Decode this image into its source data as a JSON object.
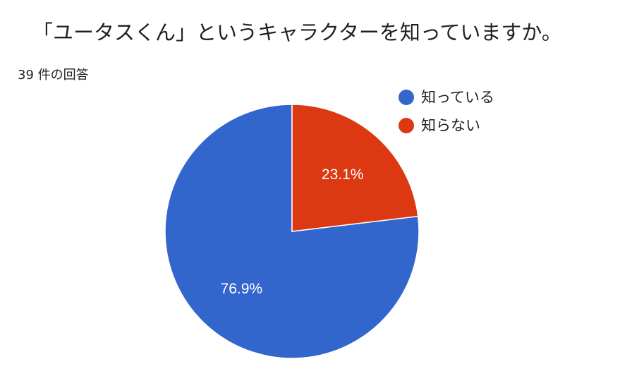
{
  "header": {
    "question": "「ユータスくん」というキャラクターを知っていますか。",
    "response_count": "39 件の回答"
  },
  "chart_data": {
    "type": "pie",
    "title": "「ユータスくん」というキャラクターを知っていますか。",
    "total_responses": 39,
    "legend_position": "top-right",
    "slices": [
      {
        "label": "知っている",
        "value": 76.9,
        "display": "76.9%",
        "color": "#3366cc"
      },
      {
        "label": "知らない",
        "value": 23.1,
        "display": "23.1%",
        "color": "#dc3912"
      }
    ]
  }
}
